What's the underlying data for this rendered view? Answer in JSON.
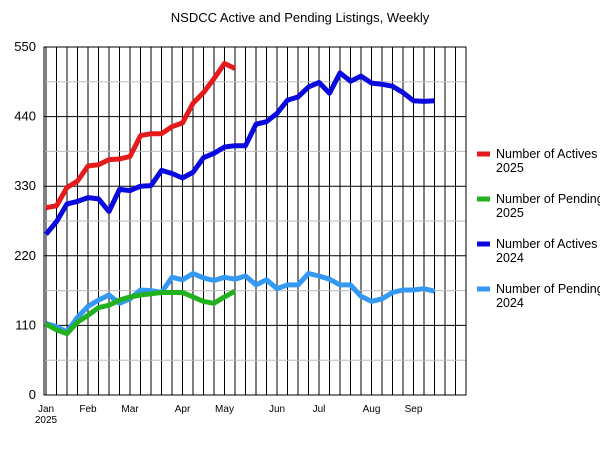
{
  "chart_data": {
    "type": "line",
    "title": "NSDCC Active and Pending Listings, Weekly",
    "xlabel": "",
    "ylabel": "",
    "ylim": [
      0,
      550
    ],
    "yticks": [
      0,
      110,
      220,
      330,
      440,
      550
    ],
    "grid": true,
    "legend_position": "right",
    "x_tick_labels": [
      {
        "week": 0,
        "label": "Jan",
        "label2": "2025"
      },
      {
        "week": 4,
        "label": "Feb"
      },
      {
        "week": 8,
        "label": "Mar"
      },
      {
        "week": 13,
        "label": "Apr"
      },
      {
        "week": 17,
        "label": "May"
      },
      {
        "week": 22,
        "label": "Jun"
      },
      {
        "week": 26,
        "label": "Jul"
      },
      {
        "week": 31,
        "label": "Aug"
      },
      {
        "week": 35,
        "label": "Sep"
      }
    ],
    "x_count": 41,
    "series": [
      {
        "name": "Number of Actives 2025",
        "color": "#e41a1c",
        "values": [
          296,
          299,
          328,
          338,
          362,
          364,
          372,
          373,
          377,
          410,
          413,
          413,
          424,
          430,
          461,
          478,
          500,
          524,
          516
        ]
      },
      {
        "name": "Number of Pendings 2025",
        "color": "#22b11f",
        "values": [
          112,
          103,
          97,
          115,
          126,
          138,
          142,
          150,
          155,
          158,
          160,
          162,
          162,
          162,
          155,
          148,
          145,
          155,
          164
        ]
      },
      {
        "name": "Number of Actives 2024",
        "color": "#0a0adf",
        "values": [
          254,
          274,
          302,
          306,
          312,
          310,
          290,
          325,
          323,
          330,
          331,
          355,
          350,
          343,
          352,
          375,
          382,
          392,
          394,
          394,
          428,
          432,
          445,
          466,
          471,
          487,
          494,
          477,
          509,
          496,
          504,
          493,
          491,
          488,
          478,
          465,
          464,
          465
        ]
      },
      {
        "name": "Number of Pendings 2024",
        "color": "#3399f3",
        "values": [
          113,
          108,
          100,
          123,
          140,
          150,
          158,
          145,
          152,
          166,
          165,
          162,
          186,
          182,
          192,
          185,
          181,
          186,
          183,
          188,
          174,
          182,
          168,
          174,
          174,
          192,
          188,
          183,
          174,
          174,
          156,
          148,
          152,
          162,
          166,
          166,
          168,
          164
        ]
      }
    ]
  }
}
